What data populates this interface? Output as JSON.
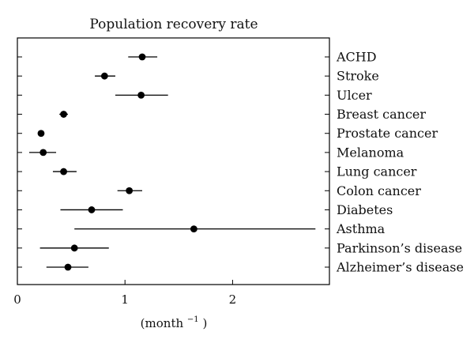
{
  "chart_data": {
    "type": "scatter",
    "title": "Population recovery rate",
    "xlabel_base": "(month",
    "xlabel_sup": "−1",
    "xlabel_close": ")",
    "xlim": [
      0,
      2.9
    ],
    "x_ticks": [
      0,
      1,
      2
    ],
    "x_tick_labels": [
      "0",
      "1",
      "2"
    ],
    "grid": false,
    "legend": "none",
    "marker_color": "#000000",
    "categories": [
      "ACHD",
      "Stroke",
      "Ulcer",
      "Breast cancer",
      "Prostate cancer",
      "Melanoma",
      "Lung cancer",
      "Colon cancer",
      "Diabetes",
      "Asthma",
      "Parkinson’s disease",
      "Alzheimer’s disease"
    ],
    "values": [
      1.16,
      0.81,
      1.15,
      0.43,
      0.22,
      0.24,
      0.43,
      1.04,
      0.69,
      1.64,
      0.53,
      0.47
    ],
    "lower": [
      1.03,
      0.72,
      0.91,
      0.39,
      0.22,
      0.11,
      0.33,
      0.93,
      0.4,
      0.53,
      0.21,
      0.27
    ],
    "upper": [
      1.3,
      0.91,
      1.4,
      0.47,
      0.22,
      0.36,
      0.55,
      1.16,
      0.98,
      2.77,
      0.85,
      0.66
    ]
  }
}
